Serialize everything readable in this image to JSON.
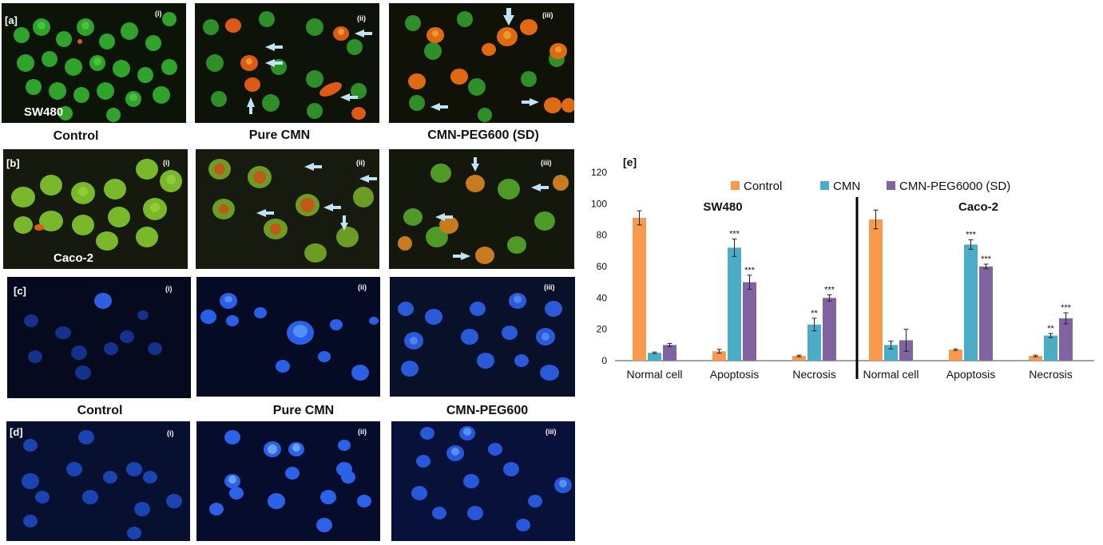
{
  "figure": {
    "captions_top": [
      "Control",
      "Pure CMN",
      "CMN-PEG600 (SD)"
    ],
    "captions_bottom": [
      "Control",
      "Pure CMN",
      "CMN-PEG600"
    ],
    "panel_a": {
      "label": "[a]",
      "cell_line": "SW480",
      "subs": [
        "(i)",
        "(ii)",
        "(iii)"
      ]
    },
    "panel_b": {
      "label": "[b]",
      "cell_line": "Caco-2",
      "subs": [
        "(i)",
        "(ii)",
        "(iii)"
      ]
    },
    "panel_c": {
      "label": "[c]",
      "subs": [
        "(i)",
        "(ii)",
        "(iii)"
      ]
    },
    "panel_d": {
      "label": "[d]",
      "subs": [
        "(i)",
        "(ii)",
        "(iii)"
      ]
    }
  },
  "chart_data": {
    "type": "bar",
    "panel_label": "[e]",
    "ylim": [
      0,
      120
    ],
    "yticks": [
      0,
      20,
      40,
      60,
      80,
      100,
      120
    ],
    "legend": {
      "placement": "top"
    },
    "colors": {
      "Control": "#F79A4D",
      "CMN": "#4BACC6",
      "CMN-PEG6000 (SD)": "#8064A2"
    },
    "groups": [
      {
        "title": "SW480",
        "categories": [
          "Normal cell",
          "Apoptosis",
          "Necrosis"
        ],
        "series": [
          {
            "name": "Control",
            "values": [
              91,
              6,
              3
            ],
            "errors": [
              4.5,
              1.2,
              0.5
            ],
            "sig": [
              "",
              "",
              ""
            ]
          },
          {
            "name": "CMN",
            "values": [
              5,
              72,
              23
            ],
            "errors": [
              0.5,
              5.5,
              4
            ],
            "sig": [
              "",
              "***",
              "**"
            ]
          },
          {
            "name": "CMN-PEG6000 (SD)",
            "values": [
              10,
              50,
              40
            ],
            "errors": [
              1,
              4.5,
              2
            ],
            "sig": [
              "",
              "***",
              "***"
            ]
          }
        ]
      },
      {
        "title": "Caco-2",
        "categories": [
          "Normal cell",
          "Apoptosis",
          "Necrosis"
        ],
        "series": [
          {
            "name": "Control",
            "values": [
              90,
              7,
              3
            ],
            "errors": [
              6,
              0.5,
              0.5
            ],
            "sig": [
              "",
              "",
              ""
            ]
          },
          {
            "name": "CMN",
            "values": [
              10,
              74,
              16
            ],
            "errors": [
              2.5,
              3,
              1.3
            ],
            "sig": [
              "",
              "***",
              "**"
            ]
          },
          {
            "name": "CMN-PEG6000 (SD)",
            "values": [
              13,
              60,
              27
            ],
            "errors": [
              7,
              1.5,
              3.5
            ],
            "sig": [
              "",
              "***",
              "***"
            ]
          }
        ]
      }
    ]
  }
}
